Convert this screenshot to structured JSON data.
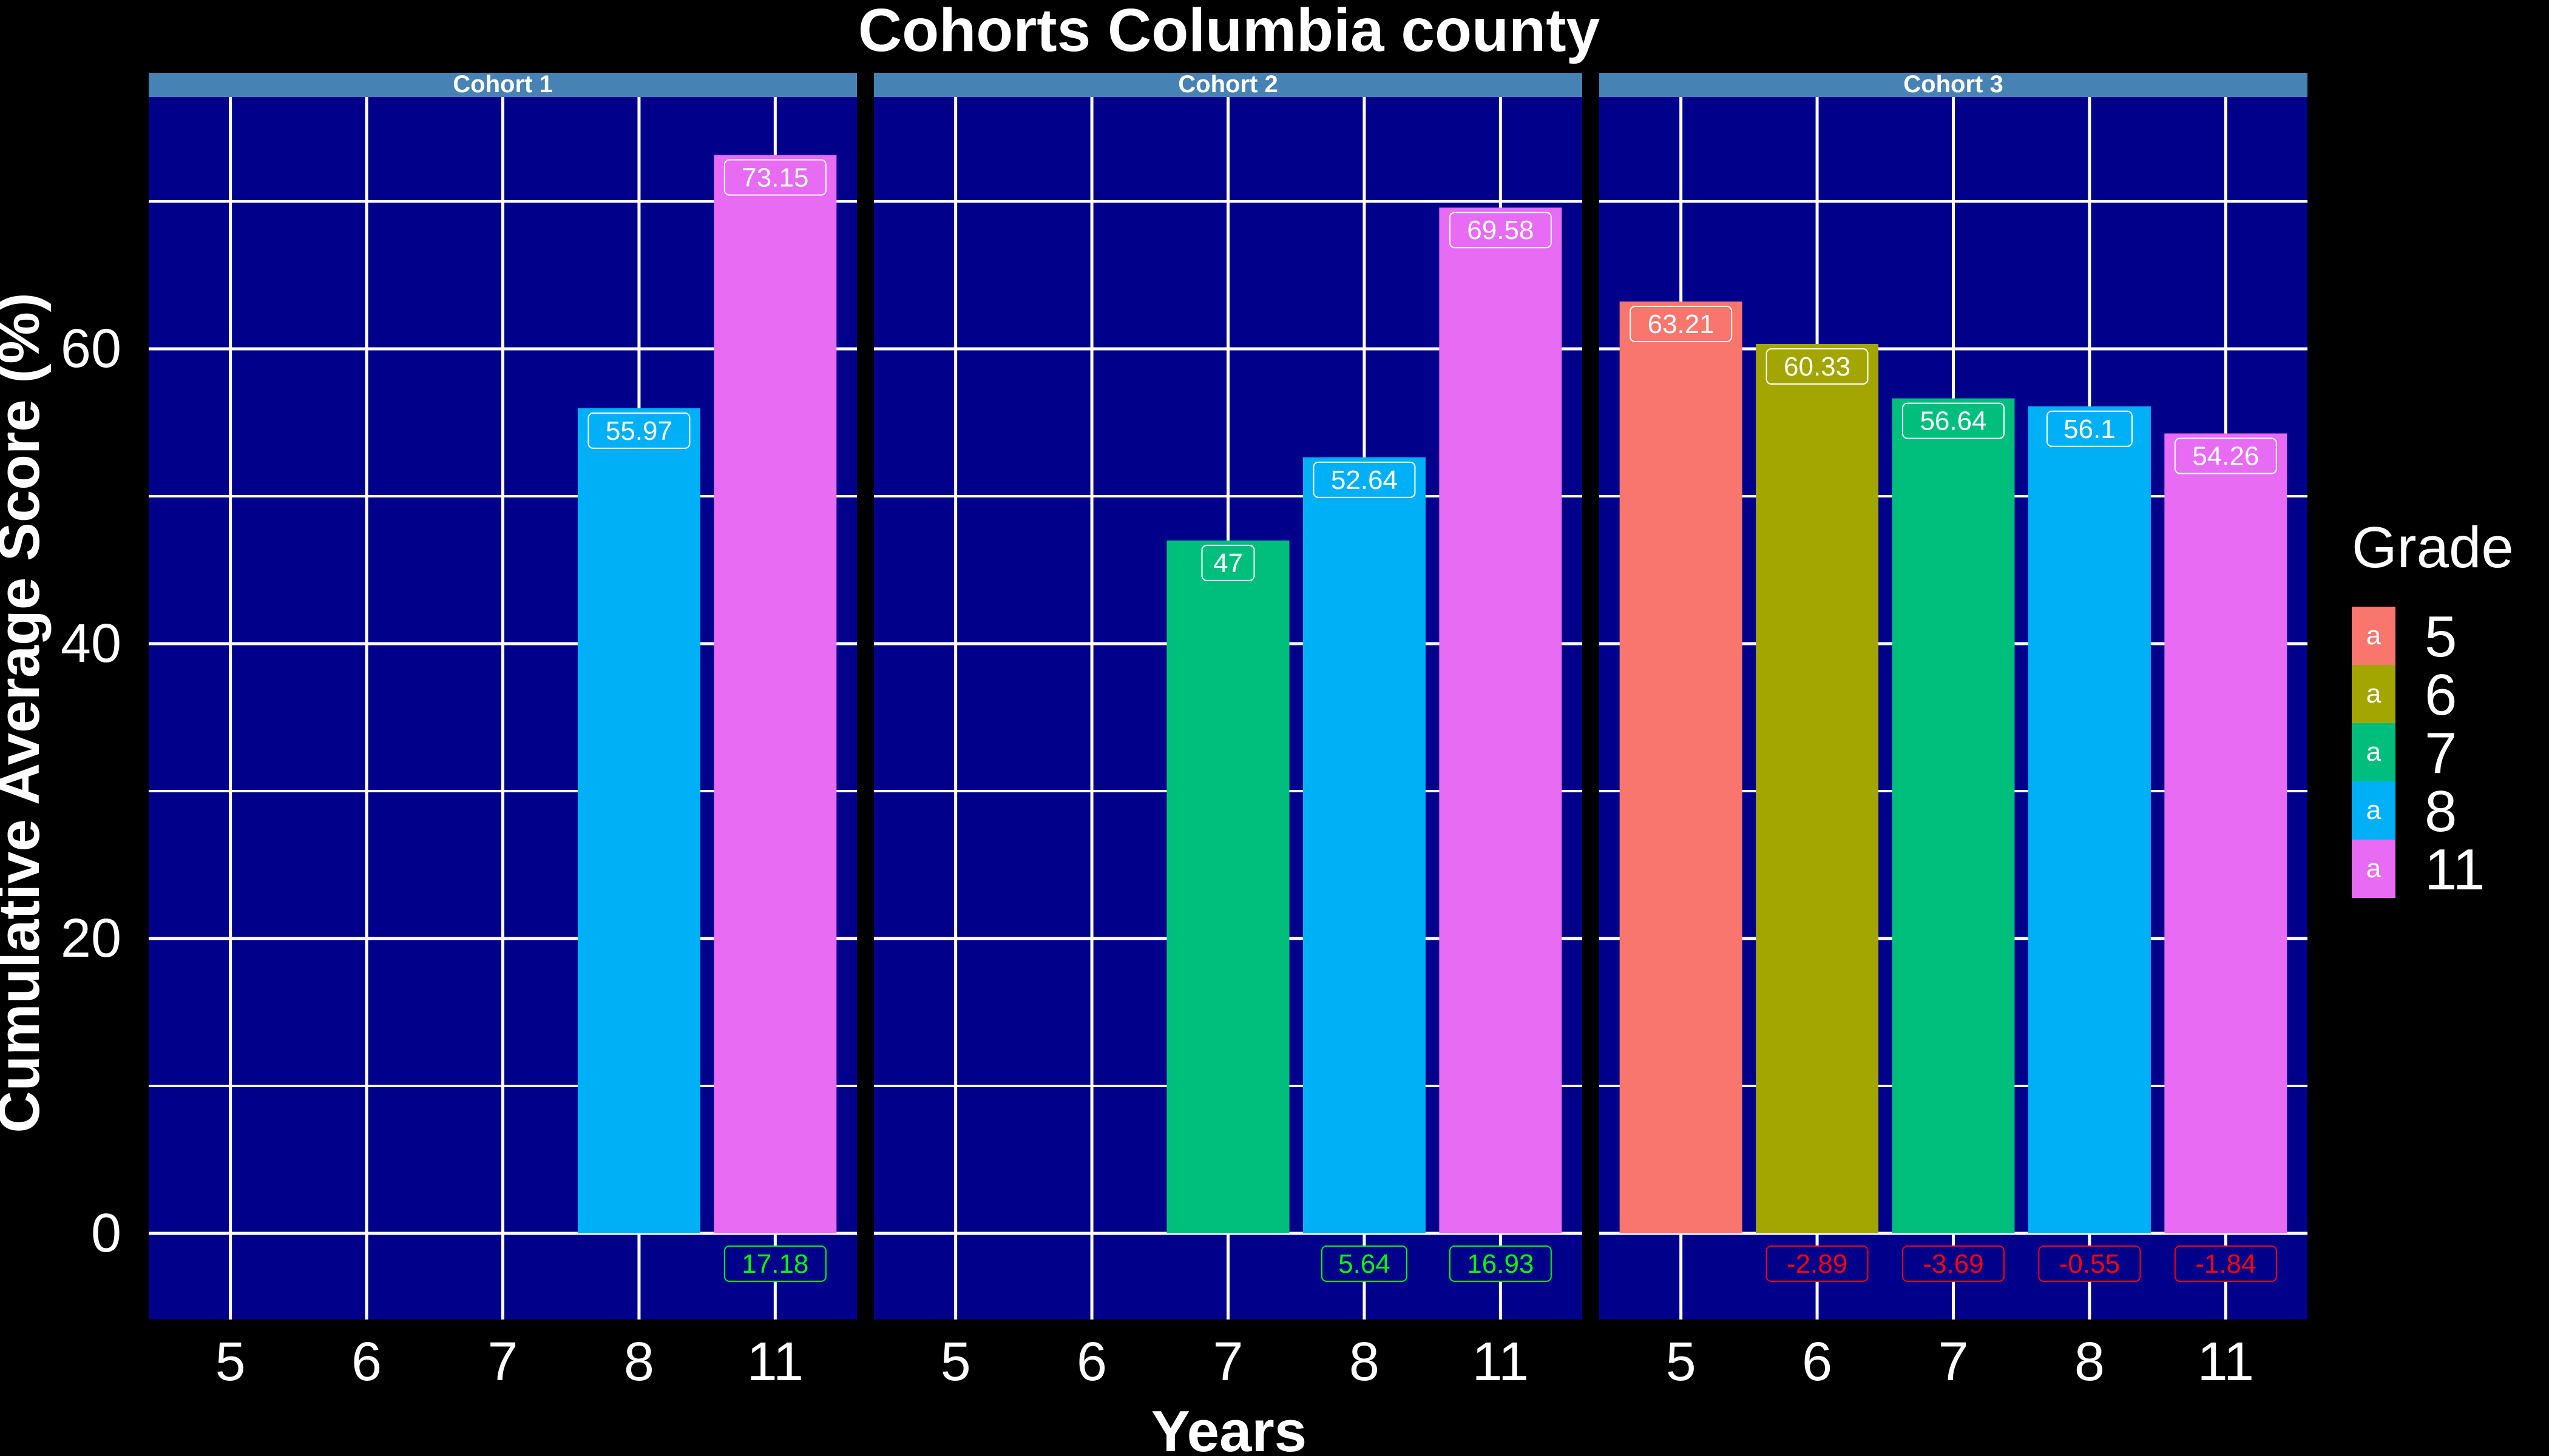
{
  "colors": {
    "background": "#000000",
    "panel": "#00008B",
    "strip": "#4682B4",
    "grid": "#FFFFFF",
    "change_positive": "#00FF00",
    "change_negative": "#FF0000"
  },
  "chart_data": {
    "type": "bar",
    "title": "Cohorts Columbia county",
    "xlabel": "Years",
    "ylabel": "Cumulative Average Score (%)",
    "ylim": [
      -6,
      77
    ],
    "yticks": [
      0,
      20,
      40,
      60
    ],
    "grid": true,
    "categories": [
      "5",
      "6",
      "7",
      "8",
      "11"
    ],
    "legend": {
      "title": "Grade",
      "placement": "right",
      "key_glyph": "a",
      "entries": [
        {
          "label": "5",
          "color": "#F8766D"
        },
        {
          "label": "6",
          "color": "#A3A500"
        },
        {
          "label": "7",
          "color": "#00BF7D"
        },
        {
          "label": "8",
          "color": "#00B0F6"
        },
        {
          "label": "11",
          "color": "#E76BF3"
        }
      ]
    },
    "panels": [
      {
        "name": "Cohort 1",
        "bars": [
          {
            "category": "8",
            "value": 55.97,
            "label": "55.97",
            "change": null,
            "change_label": ""
          },
          {
            "category": "11",
            "value": 73.15,
            "label": "73.15",
            "change": 17.18,
            "change_label": "17.18"
          }
        ]
      },
      {
        "name": "Cohort 2",
        "bars": [
          {
            "category": "7",
            "value": 47,
            "label": "47",
            "change": null,
            "change_label": ""
          },
          {
            "category": "8",
            "value": 52.64,
            "label": "52.64",
            "change": 5.64,
            "change_label": "5.64"
          },
          {
            "category": "11",
            "value": 69.58,
            "label": "69.58",
            "change": 16.93,
            "change_label": "16.93"
          }
        ]
      },
      {
        "name": "Cohort 3",
        "bars": [
          {
            "category": "5",
            "value": 63.21,
            "label": "63.21",
            "change": null,
            "change_label": ""
          },
          {
            "category": "6",
            "value": 60.33,
            "label": "60.33",
            "change": -2.89,
            "change_label": "-2.89"
          },
          {
            "category": "7",
            "value": 56.64,
            "label": "56.64",
            "change": -3.69,
            "change_label": "-3.69"
          },
          {
            "category": "8",
            "value": 56.1,
            "label": "56.1",
            "change": -0.55,
            "change_label": "-0.55"
          },
          {
            "category": "11",
            "value": 54.26,
            "label": "54.26",
            "change": -1.84,
            "change_label": "-1.84"
          }
        ]
      }
    ]
  }
}
